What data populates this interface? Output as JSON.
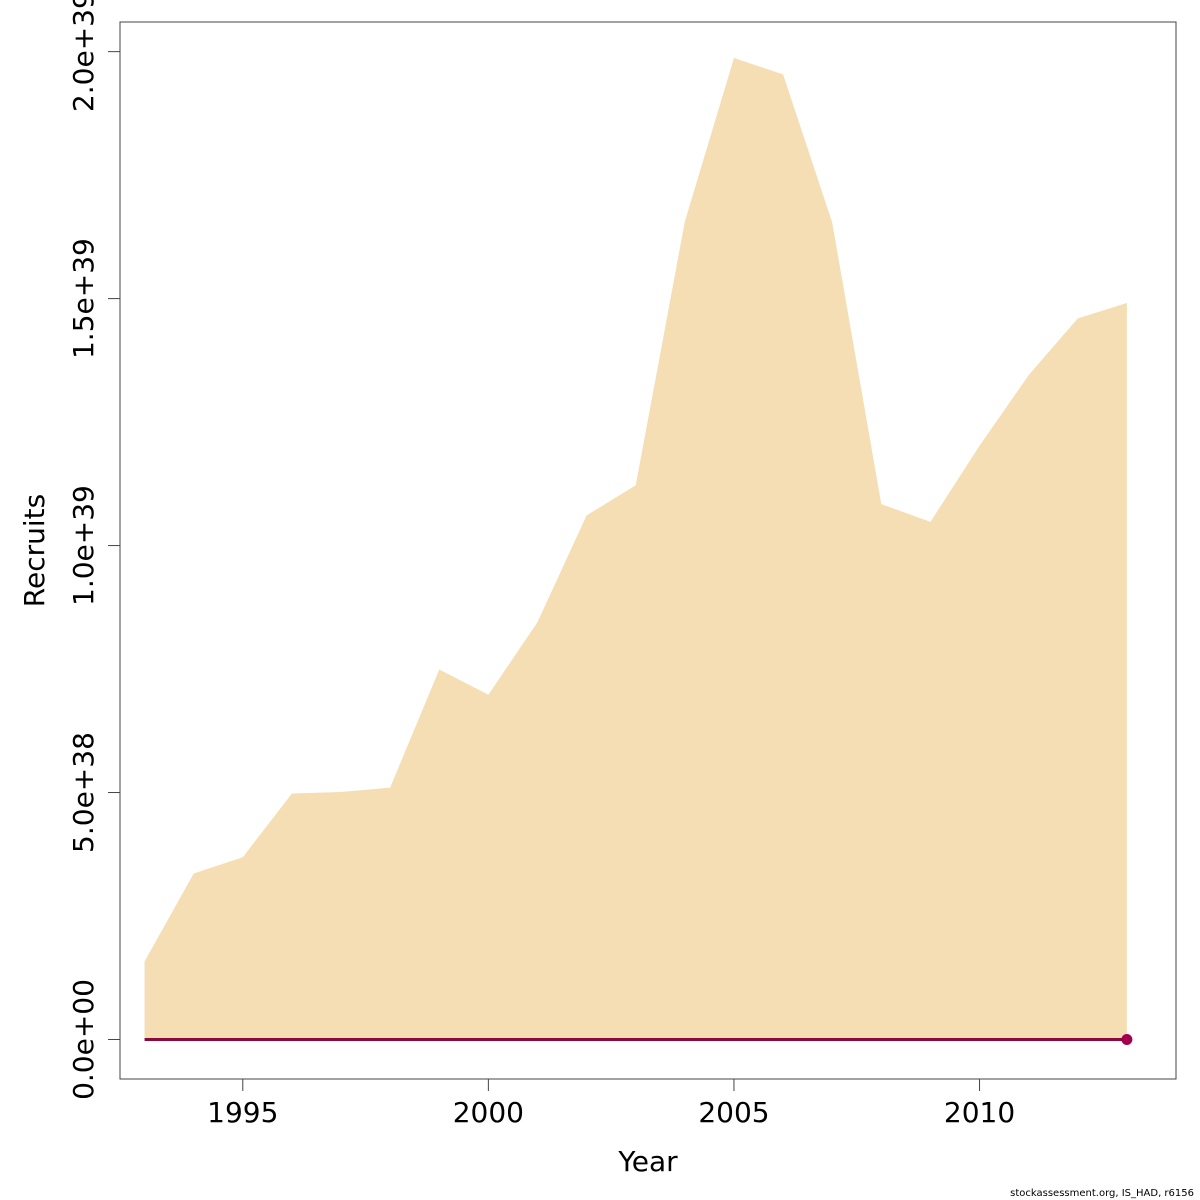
{
  "chart_data": {
    "type": "area",
    "title": "",
    "xlabel": "Year",
    "ylabel": "Recruits",
    "xlim": [
      1992.5,
      2014.0
    ],
    "ylim": [
      -8e+37,
      2.06e+39
    ],
    "x_ticks": [
      1995,
      2000,
      2005,
      2010
    ],
    "x_tick_labels": [
      "1995",
      "2000",
      "2005",
      "2010"
    ],
    "y_ticks": [
      0,
      5e+38,
      1e+39,
      1.5e+39,
      2e+39
    ],
    "y_tick_labels": [
      "0.0e+00",
      "5.0e+38",
      "1.0e+39",
      "1.5e+39",
      "2.0e+39"
    ],
    "grid": false,
    "x": [
      1993,
      1994,
      1995,
      1996,
      1997,
      1998,
      1999,
      2000,
      2001,
      2002,
      2003,
      2004,
      2005,
      2006,
      2007,
      2008,
      2009,
      2010,
      2011,
      2012,
      2013
    ],
    "series": [
      {
        "role": "upper-bound",
        "color": "#F5DEB3",
        "values": [
          1.58e+38,
          3.36e+38,
          3.69e+38,
          4.98e+38,
          5.01e+38,
          5.1e+38,
          7.49e+38,
          6.98e+38,
          8.45e+38,
          1.061e+39,
          1.122e+39,
          1.656e+39,
          1.987e+39,
          1.954e+39,
          1.654e+39,
          1.084e+39,
          1.048e+39,
          1.202e+39,
          1.345e+39,
          1.46e+39,
          1.491e+39
        ]
      },
      {
        "role": "estimate",
        "color": "#8B0A3C",
        "values": [
          0,
          0,
          0,
          0,
          0,
          0,
          0,
          0,
          0,
          0,
          0,
          0,
          0,
          0,
          0,
          0,
          0,
          0,
          0,
          0,
          0
        ]
      }
    ],
    "marker": {
      "x": 2013,
      "y": 0,
      "color": "#A3004F"
    }
  },
  "footer": "stockassessment.org, IS_HAD, r6156"
}
